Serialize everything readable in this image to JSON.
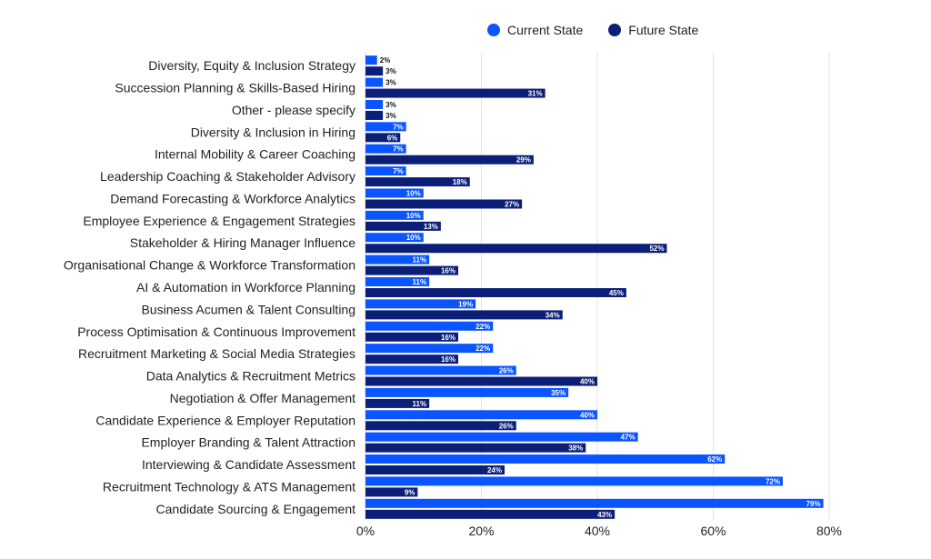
{
  "chart_data": {
    "type": "bar",
    "orientation": "horizontal",
    "categories": [
      "Diversity, Equity & Inclusion Strategy",
      "Succession Planning & Skills-Based Hiring",
      "Other - please specify",
      "Diversity & Inclusion in Hiring",
      "Internal Mobility & Career Coaching",
      "Leadership Coaching & Stakeholder Advisory",
      "Demand Forecasting & Workforce Analytics",
      "Employee Experience & Engagement Strategies",
      "Stakeholder & Hiring Manager Influence",
      "Organisational Change & Workforce Transformation",
      "AI & Automation in Workforce Planning",
      "Business Acumen & Talent Consulting",
      "Process Optimisation & Continuous Improvement",
      "Recruitment Marketing & Social Media Strategies",
      "Data Analytics & Recruitment Metrics",
      "Negotiation & Offer Management",
      "Candidate Experience & Employer Reputation",
      "Employer Branding & Talent Attraction",
      "Interviewing & Candidate Assessment",
      "Recruitment Technology & ATS Management",
      "Candidate Sourcing & Engagement"
    ],
    "series": [
      {
        "name": "Current State",
        "color": "#0a55ff",
        "values": [
          2,
          3,
          3,
          7,
          7,
          7,
          10,
          10,
          10,
          11,
          11,
          19,
          22,
          22,
          26,
          35,
          40,
          47,
          62,
          72,
          79
        ]
      },
      {
        "name": "Future State",
        "color": "#0c1f78",
        "values": [
          3,
          31,
          3,
          6,
          29,
          18,
          27,
          13,
          52,
          16,
          45,
          34,
          16,
          16,
          40,
          11,
          26,
          38,
          24,
          9,
          43
        ]
      }
    ],
    "xlim": [
      0,
      80
    ],
    "xticks": [
      "0%",
      "20%",
      "40%",
      "60%",
      "80%"
    ],
    "value_suffix": "%",
    "grid": true,
    "legend_position": "top"
  }
}
